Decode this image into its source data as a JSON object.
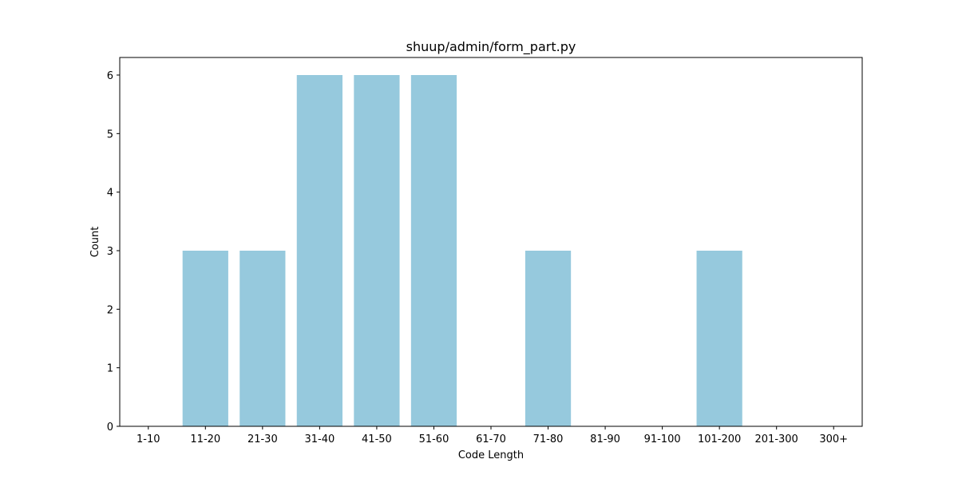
{
  "chart_data": {
    "type": "bar",
    "title": "shuup/admin/form_part.py",
    "xlabel": "Code Length",
    "ylabel": "Count",
    "categories": [
      "1-10",
      "11-20",
      "21-30",
      "31-40",
      "41-50",
      "51-60",
      "61-70",
      "71-80",
      "81-90",
      "91-100",
      "101-200",
      "201-300",
      "300+"
    ],
    "values": [
      0,
      3,
      3,
      6,
      6,
      6,
      0,
      3,
      0,
      0,
      3,
      0,
      0
    ],
    "ylim": [
      0,
      6.3
    ],
    "yticks": [
      0,
      1,
      2,
      3,
      4,
      5,
      6
    ],
    "grid": false,
    "bar_color": "#96c9dd"
  }
}
